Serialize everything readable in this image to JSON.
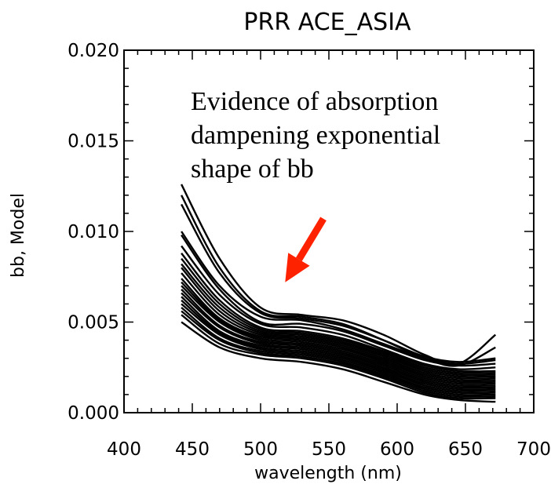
{
  "chart_data": {
    "type": "line",
    "title": "PRR ACE_ASIA",
    "xlabel": "wavelength (nm)",
    "ylabel": "bb, Model",
    "xlim": [
      400,
      700
    ],
    "ylim": [
      0.0,
      0.02
    ],
    "x_ticks": [
      "400",
      "450",
      "500",
      "550",
      "600",
      "650",
      "700"
    ],
    "y_ticks": [
      "0.000",
      "0.005",
      "0.010",
      "0.015",
      "0.020"
    ],
    "x": [
      442,
      470,
      500,
      530,
      560,
      590,
      620,
      645,
      672
    ],
    "series": [
      {
        "values": [
          0.0126,
          0.0085,
          0.0058,
          0.0054,
          0.0051,
          0.0043,
          0.0032,
          0.0027,
          0.0043
        ]
      },
      {
        "values": [
          0.012,
          0.008,
          0.0056,
          0.0053,
          0.0049,
          0.004,
          0.003,
          0.0026,
          0.0036
        ]
      },
      {
        "values": [
          0.0115,
          0.0077,
          0.0055,
          0.0052,
          0.0048,
          0.004,
          0.0031,
          0.0028,
          0.003
        ]
      },
      {
        "values": [
          0.01,
          0.007,
          0.0053,
          0.0051,
          0.0046,
          0.0038,
          0.003,
          0.0027,
          0.0029
        ]
      },
      {
        "values": [
          0.0098,
          0.0068,
          0.005,
          0.0049,
          0.0045,
          0.0037,
          0.0029,
          0.0026,
          0.0027
        ]
      },
      {
        "values": [
          0.0092,
          0.0065,
          0.0049,
          0.0047,
          0.0043,
          0.0035,
          0.0027,
          0.0024,
          0.0025
        ]
      },
      {
        "values": [
          0.0088,
          0.0062,
          0.0047,
          0.0045,
          0.0041,
          0.0034,
          0.0026,
          0.0023,
          0.0023
        ]
      },
      {
        "values": [
          0.0085,
          0.006,
          0.0046,
          0.0044,
          0.004,
          0.0033,
          0.0025,
          0.0022,
          0.0022
        ]
      },
      {
        "values": [
          0.0082,
          0.0058,
          0.0045,
          0.0043,
          0.0039,
          0.0032,
          0.0024,
          0.0021,
          0.0021
        ]
      },
      {
        "values": [
          0.008,
          0.0056,
          0.0044,
          0.0042,
          0.0038,
          0.0031,
          0.0023,
          0.002,
          0.002
        ]
      },
      {
        "values": [
          0.0077,
          0.0054,
          0.0043,
          0.0041,
          0.0037,
          0.003,
          0.0022,
          0.0019,
          0.0019
        ]
      },
      {
        "values": [
          0.0074,
          0.0052,
          0.0042,
          0.004,
          0.0036,
          0.0029,
          0.0021,
          0.0018,
          0.0018
        ]
      },
      {
        "values": [
          0.0072,
          0.0051,
          0.0041,
          0.0039,
          0.0035,
          0.0028,
          0.002,
          0.0017,
          0.0017
        ]
      },
      {
        "values": [
          0.007,
          0.005,
          0.004,
          0.0038,
          0.0034,
          0.0027,
          0.0019,
          0.0016,
          0.0016
        ]
      },
      {
        "values": [
          0.0068,
          0.0048,
          0.0039,
          0.0037,
          0.0033,
          0.0026,
          0.0018,
          0.0015,
          0.0015
        ]
      },
      {
        "values": [
          0.0066,
          0.0047,
          0.0038,
          0.0036,
          0.0032,
          0.0025,
          0.0017,
          0.0014,
          0.0014
        ]
      },
      {
        "values": [
          0.0064,
          0.0045,
          0.0037,
          0.0035,
          0.0031,
          0.0024,
          0.0016,
          0.0013,
          0.0013
        ]
      },
      {
        "values": [
          0.0062,
          0.0044,
          0.0036,
          0.0034,
          0.003,
          0.0023,
          0.0015,
          0.0012,
          0.0012
        ]
      },
      {
        "values": [
          0.006,
          0.0043,
          0.0035,
          0.0033,
          0.0029,
          0.0022,
          0.0014,
          0.0011,
          0.0011
        ]
      },
      {
        "values": [
          0.0058,
          0.0041,
          0.0034,
          0.0032,
          0.0028,
          0.0021,
          0.0013,
          0.001,
          0.001
        ]
      },
      {
        "values": [
          0.0056,
          0.004,
          0.0033,
          0.0031,
          0.0027,
          0.002,
          0.0012,
          0.0009,
          0.0009
        ]
      },
      {
        "values": [
          0.0054,
          0.0038,
          0.0032,
          0.003,
          0.0026,
          0.0019,
          0.0011,
          0.0008,
          0.0008
        ]
      },
      {
        "values": [
          0.005,
          0.0036,
          0.003,
          0.0028,
          0.0024,
          0.0017,
          0.001,
          0.0007,
          0.0006
        ]
      }
    ],
    "line_color": "#000000",
    "annotation": {
      "lines": [
        "Evidence of absorption",
        "dampening exponential",
        "shape of bb"
      ],
      "arrow_color": "#ff2200",
      "arrow_from": [
        546,
        0.0107
      ],
      "arrow_to": [
        518,
        0.0072
      ]
    }
  }
}
